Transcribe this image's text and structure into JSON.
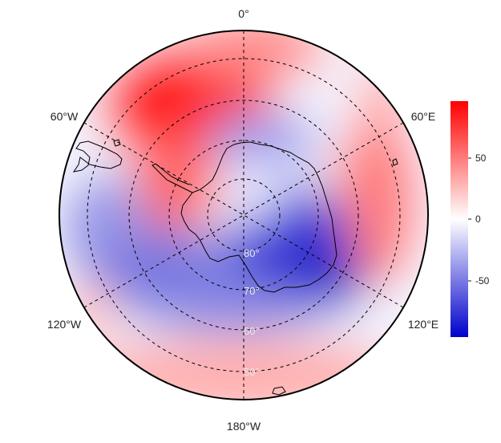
{
  "map": {
    "projection": "south-polar-stereographic",
    "longitude_labels": [
      "0°",
      "60°E",
      "120°E",
      "180°W",
      "120°W",
      "60°W"
    ],
    "latitude_labels": [
      "80°",
      "70°",
      "60°",
      "50°"
    ],
    "colors": {
      "low": "#0000cc",
      "mid": "#ffffff",
      "high": "#ff0000",
      "coastline": "#000000",
      "graticule": "#000000"
    }
  },
  "colorbar": {
    "tick_labels": [
      "50",
      "0",
      "-50"
    ],
    "ticks": [
      50,
      0,
      -50
    ],
    "range": [
      -95,
      95
    ]
  }
}
